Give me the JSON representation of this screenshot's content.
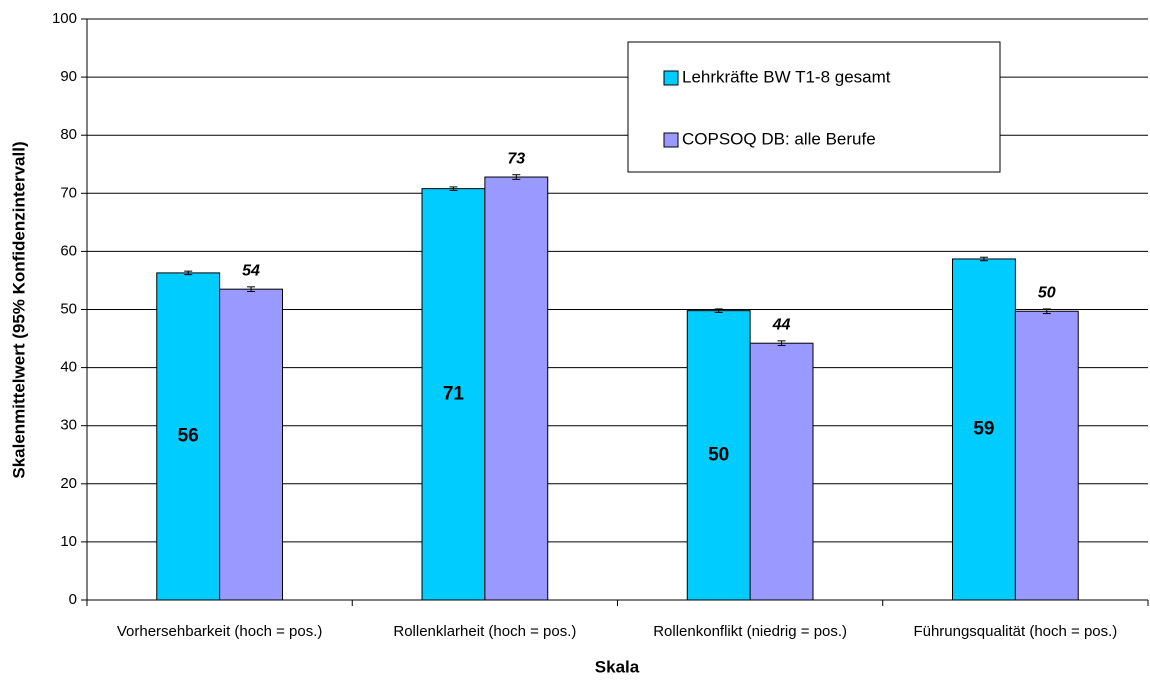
{
  "chart_data": {
    "type": "bar",
    "categories": [
      "Vorhersehbarkeit (hoch = pos.)",
      "Rollenklarheit (hoch = pos.)",
      "Rollenkonflikt (niedrig = pos.)",
      "Führungsqualität (hoch = pos.)"
    ],
    "series": [
      {
        "name": "Lehrkräfte BW T1-8 gesamt",
        "color": "#00ccff",
        "values": [
          56.3,
          70.8,
          49.8,
          58.7
        ],
        "errors": [
          0.3,
          0.3,
          0.3,
          0.3
        ],
        "value_labels": [
          "56",
          "71",
          "50",
          "59"
        ]
      },
      {
        "name": "COPSOQ DB: alle Berufe",
        "color": "#9999ff",
        "values": [
          53.5,
          72.8,
          44.2,
          49.7
        ],
        "errors": [
          0.4,
          0.4,
          0.4,
          0.4
        ],
        "value_labels": [
          "54",
          "73",
          "44",
          "50"
        ]
      }
    ],
    "xlabel": "Skala",
    "ylabel": "Skalenmittelwert (95% Konfidenzintervall)",
    "ylim": [
      0,
      100
    ],
    "yticks": [
      0,
      10,
      20,
      30,
      40,
      50,
      60,
      70,
      80,
      90,
      100
    ],
    "grid": true,
    "legend": "upper right"
  }
}
